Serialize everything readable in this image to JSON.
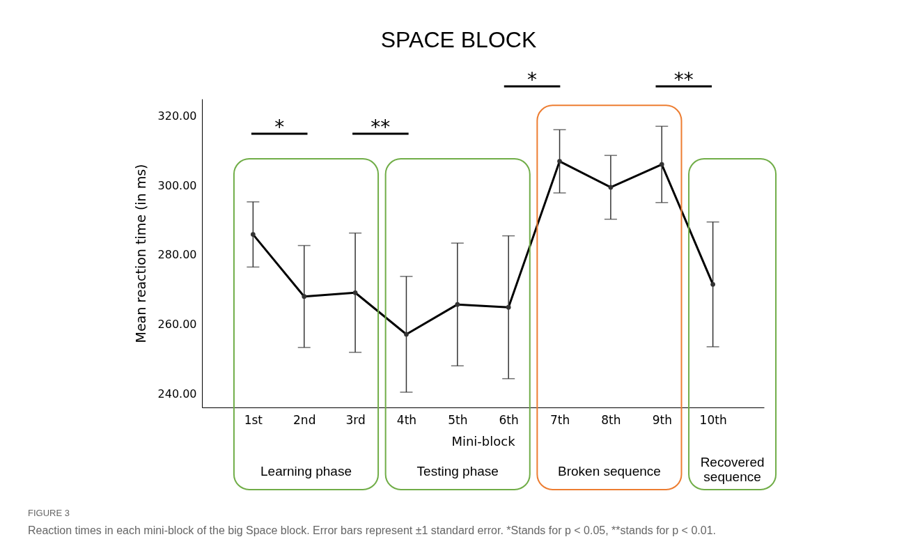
{
  "chart_data": {
    "type": "line",
    "title": "SPACE BLOCK",
    "xlabel": "Mini-block",
    "ylabel": "Mean reaction time (in ms)",
    "categories": [
      "1st",
      "2nd",
      "3rd",
      "4th",
      "5th",
      "6th",
      "7th",
      "8th",
      "9th",
      "10th"
    ],
    "series": [
      {
        "color": "#000000",
        "values": [
          285.9,
          268.0,
          269.1,
          257.1,
          265.7,
          264.9,
          307.0,
          299.5,
          306.1,
          271.5
        ],
        "errors": [
          9.4,
          14.7,
          17.2,
          16.7,
          17.7,
          20.6,
          9.1,
          9.2,
          11.0,
          18.0
        ]
      }
    ],
    "ylim": [
      236,
      325
    ],
    "yticks": [
      {
        "value": 240,
        "label": "240.00"
      },
      {
        "value": 260,
        "label": "260.00"
      },
      {
        "value": 280,
        "label": "280.00"
      },
      {
        "value": 300,
        "label": "300.00"
      },
      {
        "value": 320,
        "label": "320.00"
      }
    ],
    "marker": "circle",
    "grid": false,
    "annotations": [
      "*",
      "**",
      "*",
      "**",
      "Learning phase",
      "Testing phase",
      "Broken sequence",
      "Recovered sequence",
      "FIGURE 3",
      "Reaction times in each mini-block of the big Space block. Error bars represent ±1 standard error. *Stands for p < 0.05, **stands for p < 0.01."
    ]
  }
}
